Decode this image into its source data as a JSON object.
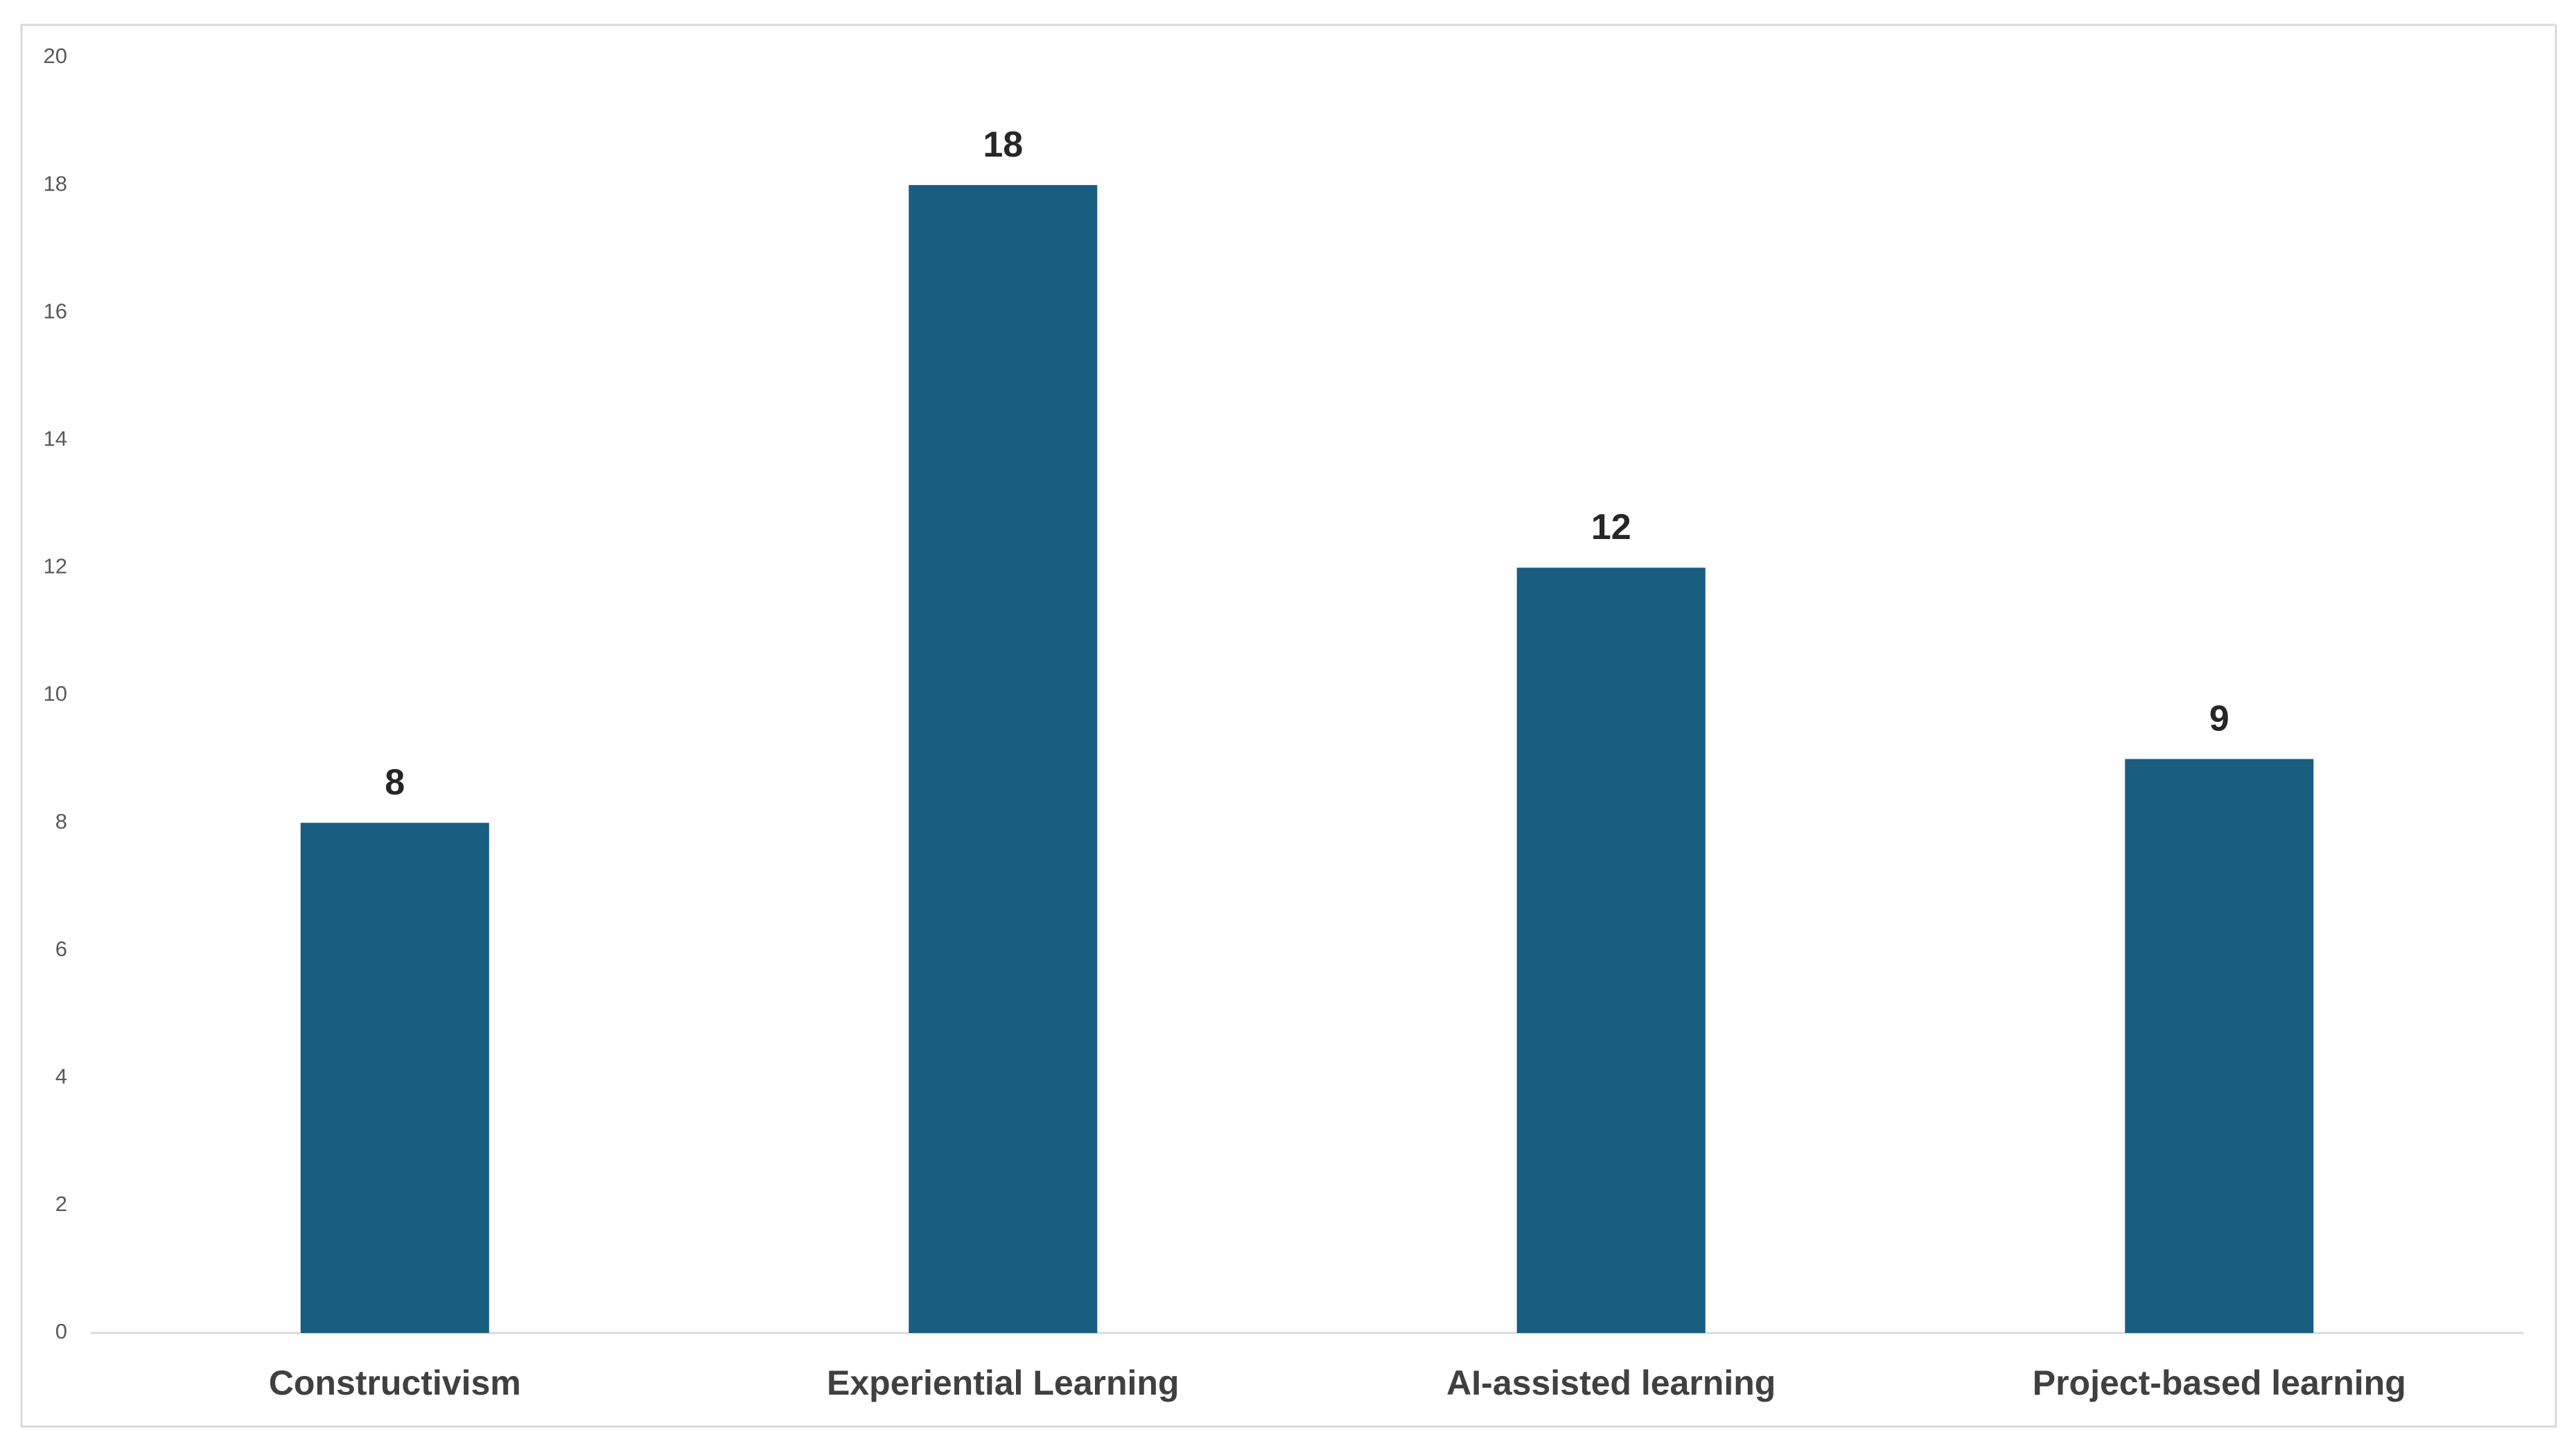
{
  "chart_data": {
    "type": "bar",
    "categories": [
      "Constructivism",
      "Experiential Learning",
      "AI-assisted learning",
      "Project-based learning"
    ],
    "values": [
      8,
      18,
      12,
      9
    ],
    "color": "#175e81",
    "ylim": [
      0,
      20
    ],
    "yticks": [
      0,
      2,
      4,
      6,
      8,
      10,
      12,
      14,
      16,
      18,
      20
    ],
    "grid": false,
    "data_labels": true
  }
}
